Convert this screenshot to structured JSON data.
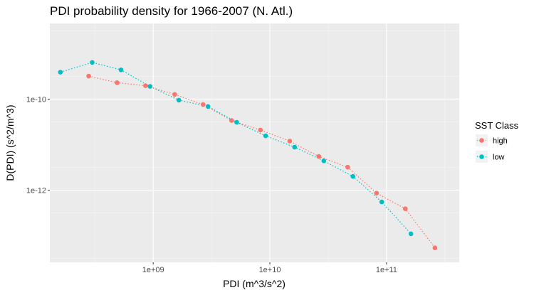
{
  "chart_data": {
    "type": "scatter",
    "title": "PDI probability density for 1966-2007 (N. Atl.)",
    "xlabel": "PDI (m^3/s^2)",
    "ylabel": "D(PDI) (s^2/m^3)",
    "x_scale": "log10",
    "y_scale": "log10",
    "xlim": [
      130000000.0,
      420000000000.0
    ],
    "ylim": [
      2.6e-14,
      4.6e-09
    ],
    "x_ticks": [
      {
        "value": 1000000000.0,
        "label": "1e+09"
      },
      {
        "value": 10000000000.0,
        "label": "1e+10"
      },
      {
        "value": 100000000000.0,
        "label": "1e+11"
      }
    ],
    "y_ticks": [
      {
        "value": 1e-10,
        "label": "1e-10"
      },
      {
        "value": 1e-12,
        "label": "1e-12"
      }
    ],
    "grid": true,
    "line_style": "dotted",
    "legend": {
      "title": "SST Class",
      "placement": "right"
    },
    "series": [
      {
        "name": "high",
        "color": "#F8766D",
        "points": [
          [
            280000000.0,
            3.2e-10
          ],
          [
            490000000.0,
            2.3e-10
          ],
          [
            860000000.0,
            1.97e-10
          ],
          [
            1530000000.0,
            1.27e-10
          ],
          [
            2680000000.0,
            7.6e-11
          ],
          [
            4700000000.0,
            3.4e-11
          ],
          [
            8300000000.0,
            2.1e-11
          ],
          [
            14800000000.0,
            1.2e-11
          ],
          [
            26300000000.0,
            5.5e-12
          ],
          [
            46500000000.0,
            3.2e-12
          ],
          [
            82000000000.0,
            8.6e-13
          ],
          [
            145000000000.0,
            3.9e-13
          ],
          [
            260000000000.0,
            5.4e-14
          ]
        ]
      },
      {
        "name": "low",
        "color": "#00BFC4",
        "points": [
          [
            160000000.0,
            3.9e-10
          ],
          [
            300000000.0,
            6.4e-10
          ],
          [
            530000000.0,
            4.4e-10
          ],
          [
            940000000.0,
            1.9e-10
          ],
          [
            1660000000.0,
            9.5e-11
          ],
          [
            2950000000.0,
            6.9e-11
          ],
          [
            5200000000.0,
            3.1e-11
          ],
          [
            9200000000.0,
            1.56e-11
          ],
          [
            16300000000.0,
            8.8e-12
          ],
          [
            29000000000.0,
            4.4e-12
          ],
          [
            51500000000.0,
            2e-12
          ],
          [
            91000000000.0,
            5.5e-13
          ],
          [
            162000000000.0,
            1.1e-13
          ]
        ]
      }
    ]
  }
}
